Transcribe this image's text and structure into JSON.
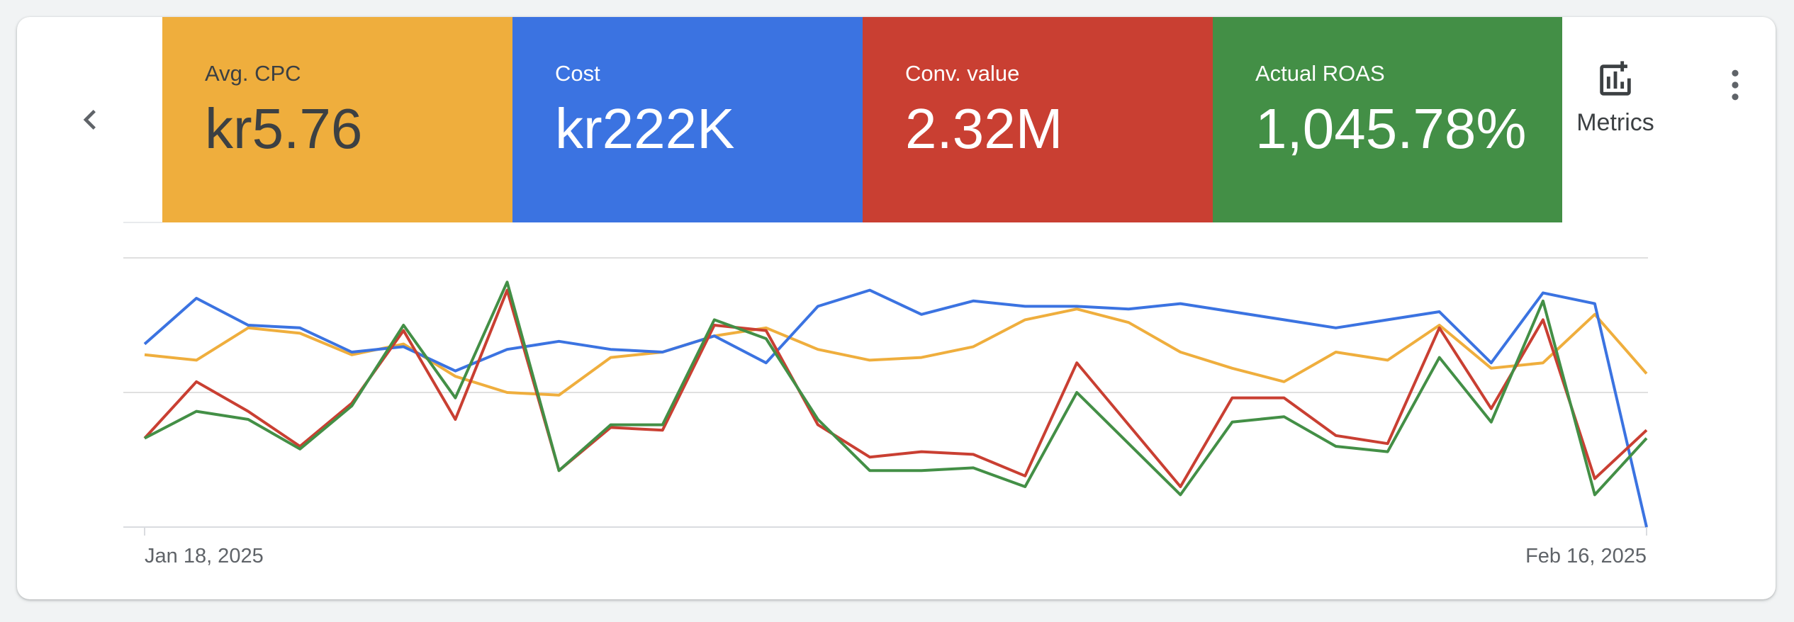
{
  "nav": {
    "prev_icon": "chevron-left-icon"
  },
  "tiles": [
    {
      "label": "Avg. CPC",
      "value": "kr5.76",
      "color": "#efae3d",
      "text_color": "#3c4043"
    },
    {
      "label": "Cost",
      "value": "kr222K",
      "color": "#3b73e1",
      "text_color": "#ffffff"
    },
    {
      "label": "Conv. value",
      "value": "2.32M",
      "color": "#c93f32",
      "text_color": "#ffffff"
    },
    {
      "label": "Actual ROAS",
      "value": "1,045.78%",
      "color": "#438f46",
      "text_color": "#ffffff"
    }
  ],
  "toolbar": {
    "metrics_label": "Metrics",
    "metrics_icon": "add-chart-icon",
    "more_icon": "more-vert-icon"
  },
  "chart_data": {
    "type": "line",
    "x_labels": [
      "Jan 18, 2025",
      "Feb 16, 2025"
    ],
    "grid": true,
    "y_ticks_shown": false,
    "series": [
      {
        "metric": "Avg. CPC",
        "color": "#efae3d",
        "values": [
          64,
          62,
          74,
          72,
          64,
          68,
          56,
          50,
          49,
          63,
          65,
          71,
          74,
          66,
          62,
          63,
          67,
          77,
          81,
          76,
          65,
          59,
          54,
          65,
          62,
          75,
          59,
          61,
          79,
          57
        ]
      },
      {
        "metric": "Cost",
        "color": "#3b73e1",
        "values": [
          68,
          85,
          75,
          74,
          65,
          67,
          58,
          66,
          69,
          66,
          65,
          71,
          61,
          82,
          88,
          79,
          84,
          82,
          82,
          81,
          83,
          80,
          77,
          74,
          77,
          80,
          61,
          87,
          83,
          0
        ]
      },
      {
        "metric": "Conv. value",
        "color": "#c93f32",
        "values": [
          33,
          54,
          43,
          30,
          46,
          73,
          40,
          88,
          21,
          37,
          36,
          75,
          73,
          38,
          26,
          28,
          27,
          19,
          61,
          38,
          15,
          48,
          48,
          34,
          31,
          74,
          44,
          77,
          18,
          36
        ]
      },
      {
        "metric": "Actual ROAS",
        "color": "#438f46",
        "values": [
          33,
          43,
          40,
          29,
          45,
          75,
          48,
          91,
          21,
          38,
          38,
          77,
          70,
          40,
          21,
          21,
          22,
          15,
          50,
          31,
          12,
          39,
          41,
          30,
          28,
          63,
          39,
          84,
          12,
          33
        ]
      }
    ]
  }
}
